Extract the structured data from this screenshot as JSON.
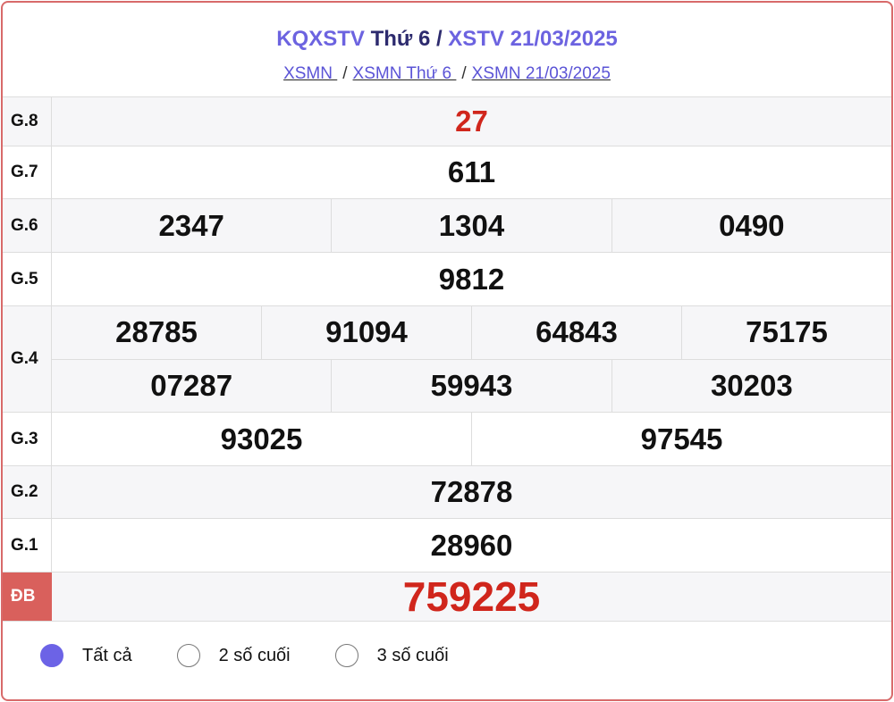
{
  "header": {
    "title_part1": "KQXSTV",
    "title_part2": " Thứ 6 / ",
    "title_part3": "XSTV 21/03/2025",
    "breadcrumbs": [
      {
        "label": "XSMN "
      },
      {
        "label": "XSMN Thứ 6 "
      },
      {
        "label": "XSMN 21/03/2025"
      }
    ],
    "sep": "/"
  },
  "results": [
    {
      "label": "G.8",
      "lines": [
        [
          "27"
        ]
      ]
    },
    {
      "label": "G.7",
      "lines": [
        [
          "611"
        ]
      ]
    },
    {
      "label": "G.6",
      "lines": [
        [
          "2347",
          "1304",
          "0490"
        ]
      ]
    },
    {
      "label": "G.5",
      "lines": [
        [
          "9812"
        ]
      ]
    },
    {
      "label": "G.4",
      "lines": [
        [
          "28785",
          "91094",
          "64843",
          "75175"
        ],
        [
          "07287",
          "59943",
          "30203"
        ]
      ]
    },
    {
      "label": "G.3",
      "lines": [
        [
          "93025",
          "97545"
        ]
      ]
    },
    {
      "label": "G.2",
      "lines": [
        [
          "72878"
        ]
      ]
    },
    {
      "label": "G.1",
      "lines": [
        [
          "28960"
        ]
      ]
    },
    {
      "label": "ĐB",
      "lines": [
        [
          "759225"
        ]
      ]
    }
  ],
  "options": [
    {
      "label": "Tất cả",
      "selected": true
    },
    {
      "label": "2 số cuối",
      "selected": false
    },
    {
      "label": "3 số cuối",
      "selected": false
    }
  ],
  "colors": {
    "accent": "#6c63e0",
    "highlight": "#d0261c",
    "special_label_bg": "#d9605c"
  }
}
